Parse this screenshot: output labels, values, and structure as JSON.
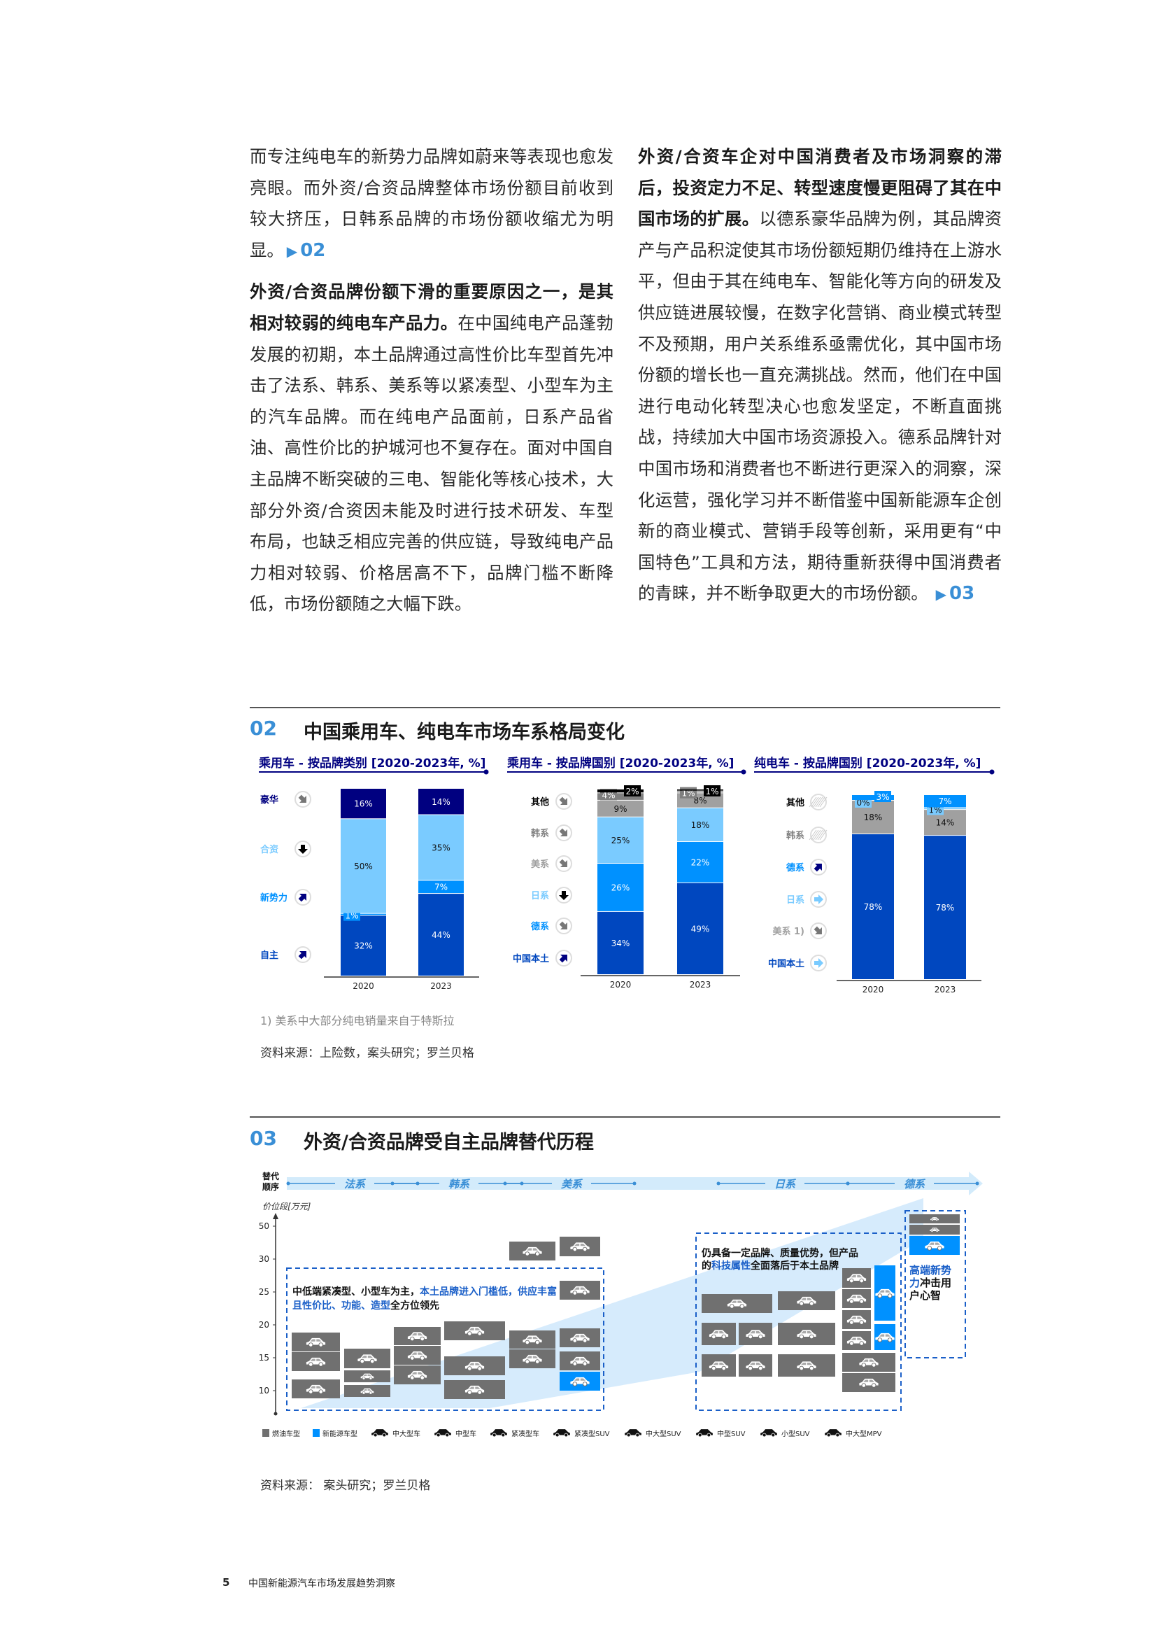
{
  "left_column": {
    "p1_text": "而专注纯电车的新势力品牌如蔚来等表现也愈发亮眼。而外资/合资品牌整体市场份额目前收到较大挤压，日韩系品牌的市场份额收缩尤为明显。",
    "p1_ref": "02",
    "p2_bold": "外资/合资品牌份额下滑的重要原因之一，是其相对较弱的纯电车产品力。",
    "p2_text": "在中国纯电产品蓬勃发展的初期，本土品牌通过高性价比车型首先冲击了法系、韩系、美系等以紧凑型、小型车为主的汽车品牌。而在纯电产品面前，日系产品省油、高性价比的护城河也不复存在。面对中国自主品牌不断突破的三电、智能化等核心技术，大部分外资/合资因未能及时进行技术研发、车型布局，也缺乏相应完善的供应链，导致纯电产品力相对较弱、价格居高不下，品牌门槛不断降低，市场份额随之大幅下跌。"
  },
  "right_column": {
    "p_bold": "外资/合资车企对中国消费者及市场洞察的滞后，投资定力不足、转型速度慢更阻碍了其在中国市场的扩展。",
    "p_text": "以德系豪华品牌为例，其品牌资产与产品积淀使其市场份额短期仍维持在上游水平，但由于其在纯电车、智能化等方向的研发及供应链进展较慢，在数字化营销、商业模式转型不及预期，用户关系维系亟需优化，其中国市场份额的增长也一直充满挑战。然而，他们在中国进行电动化转型决心也愈发坚定，不断直面挑战，持续加大中国市场资源投入。德系品牌针对中国市场和消费者也不断进行更深入的洞察，深化运营，强化学习并不断借鉴中国新能源车企创新的商业模式、营销手段等创新，采用更有“中国特色”工具和方法，期待重新获得中国消费者的青睐，并不断争取更大的市场份额。",
    "p_ref": "03"
  },
  "figure02": {
    "number": "02",
    "title": "中国乘用车、纯电车市场车系格局变化",
    "footnote": "1) 美系中大部分纯电销量来自于特斯拉",
    "source": "资料来源：上险数，案头研究；罗兰贝格"
  },
  "chart_data": [
    {
      "type": "bar",
      "stacked": true,
      "title": "乘用车 - 按品牌类别 [2020-2023年, %]",
      "categories": [
        "2020",
        "2023"
      ],
      "series": [
        {
          "name": "自主",
          "values": [
            32,
            44
          ],
          "color": "#0047BF",
          "trend": "arrow-up-right-icon"
        },
        {
          "name": "新势力",
          "values": [
            1,
            7
          ],
          "color": "#0091FF",
          "trend": "arrow-up-right-icon"
        },
        {
          "name": "合资",
          "values": [
            50,
            35
          ],
          "color": "#7ACBFF",
          "trend": "arrow-down-icon"
        },
        {
          "name": "豪华",
          "values": [
            16,
            14
          ],
          "color": "#000080",
          "trend": "arrow-down-right-icon"
        }
      ],
      "labels_2020": [
        "32%",
        "1%",
        "50%",
        "16%"
      ],
      "labels_2023": [
        "44%",
        "7%",
        "35%",
        "14%"
      ]
    },
    {
      "type": "bar",
      "stacked": true,
      "title": "乘用车 - 按品牌国别 [2020-2023年, %]",
      "categories": [
        "2020",
        "2023"
      ],
      "series": [
        {
          "name": "中国本土",
          "values": [
            34,
            49
          ],
          "color": "#0047BF",
          "trend": "arrow-up-right-icon"
        },
        {
          "name": "德系",
          "values": [
            26,
            22
          ],
          "color": "#0091FF",
          "trend": "arrow-down-right-icon"
        },
        {
          "name": "日系",
          "values": [
            25,
            18
          ],
          "color": "#7ACBFF",
          "trend": "arrow-down-icon"
        },
        {
          "name": "美系",
          "values": [
            9,
            8
          ],
          "color": "#A0A0A0",
          "trend": "arrow-down-right-icon"
        },
        {
          "name": "韩系",
          "values": [
            4,
            1
          ],
          "color": "#7F7F7F",
          "trend": "arrow-down-right-icon"
        },
        {
          "name": "其他",
          "values": [
            2,
            1
          ],
          "color": "#000000",
          "trend": "arrow-down-right-icon"
        }
      ],
      "labels_2020": [
        "34%",
        "26%",
        "25%",
        "9%",
        "4%",
        "2%"
      ],
      "labels_2023": [
        "49%",
        "22%",
        "18%",
        "8%",
        "1%",
        "1%"
      ]
    },
    {
      "type": "bar",
      "stacked": true,
      "title": "纯电车 - 按品牌国别 [2020-2023年, %]",
      "categories": [
        "2020",
        "2023"
      ],
      "series": [
        {
          "name": "中国本土",
          "values": [
            78,
            78
          ],
          "color": "#0047BF",
          "trend": "arrow-right-icon"
        },
        {
          "name": "美系",
          "sup": "1)",
          "values": [
            18,
            14
          ],
          "color": "#A0A0A0",
          "trend": "arrow-down-right-icon"
        },
        {
          "name": "日系",
          "values": [
            0,
            1
          ],
          "color": "#7ACBFF",
          "trend": "arrow-right-icon"
        },
        {
          "name": "德系",
          "values": [
            3,
            7
          ],
          "color": "#0091FF",
          "trend": "arrow-up-right-icon"
        },
        {
          "name": "韩系",
          "values": [
            0,
            0
          ],
          "color": "#7F7F7F",
          "trend": "not-applicable-icon"
        },
        {
          "name": "其他",
          "values": [
            0,
            0
          ],
          "color": "#000000",
          "trend": "not-applicable-icon"
        }
      ],
      "labels_2020": [
        "78%",
        "18%",
        "0%",
        "3%",
        "",
        ""
      ],
      "labels_2023": [
        "78%",
        "14%",
        "1%",
        "7%",
        "",
        ""
      ]
    }
  ],
  "figure03": {
    "number": "03",
    "title": "外资/合资品牌受自主品牌替代历程",
    "order_label": "替代顺序",
    "order": [
      "法系",
      "韩系",
      "美系",
      "日系",
      "德系"
    ],
    "y_axis_label": "价位段[万元]",
    "y_ticks": [
      "50",
      "30",
      "25",
      "20",
      "15",
      "10"
    ],
    "box1_text_a": "中低端紧凑型、小型车为主，",
    "box1_text_b": "本土品牌进入门槛低，供应丰富且性价比、功能、造型",
    "box1_text_c": "全方位领先",
    "box2_text_a": "仍具备一定品牌、质量优势，但产品的",
    "box2_text_b": "科技属性",
    "box2_text_c": "全面落后于本土品牌",
    "box3_text_a": "高端新势力",
    "box3_text_b": "冲击用户心智",
    "legend": [
      {
        "label": "燃油车型",
        "icon": "gray-square-icon",
        "color": "#707070"
      },
      {
        "label": "新能源车型",
        "icon": "blue-square-icon",
        "color": "#0091FF"
      },
      {
        "label": "中大型车",
        "icon": "large-car-icon"
      },
      {
        "label": "中型车",
        "icon": "mid-car-icon"
      },
      {
        "label": "紧凑型车",
        "icon": "compact-car-icon"
      },
      {
        "label": "紧凑型SUV",
        "icon": "compact-suv-icon"
      },
      {
        "label": "中大型SUV",
        "icon": "large-suv-icon"
      },
      {
        "label": "中型SUV",
        "icon": "mid-suv-icon"
      },
      {
        "label": "小型SUV",
        "icon": "small-suv-icon"
      },
      {
        "label": "中大型MPV",
        "icon": "mpv-icon"
      }
    ],
    "source": "资料来源： 案头研究；罗兰贝格"
  },
  "footer": {
    "page": "5",
    "title": "中国新能源汽车市场发展趋势洞察"
  },
  "colors": {
    "accent": "#3A8FD6",
    "navy": "#000080",
    "fossil": "#707070",
    "nev": "#0091FF"
  }
}
